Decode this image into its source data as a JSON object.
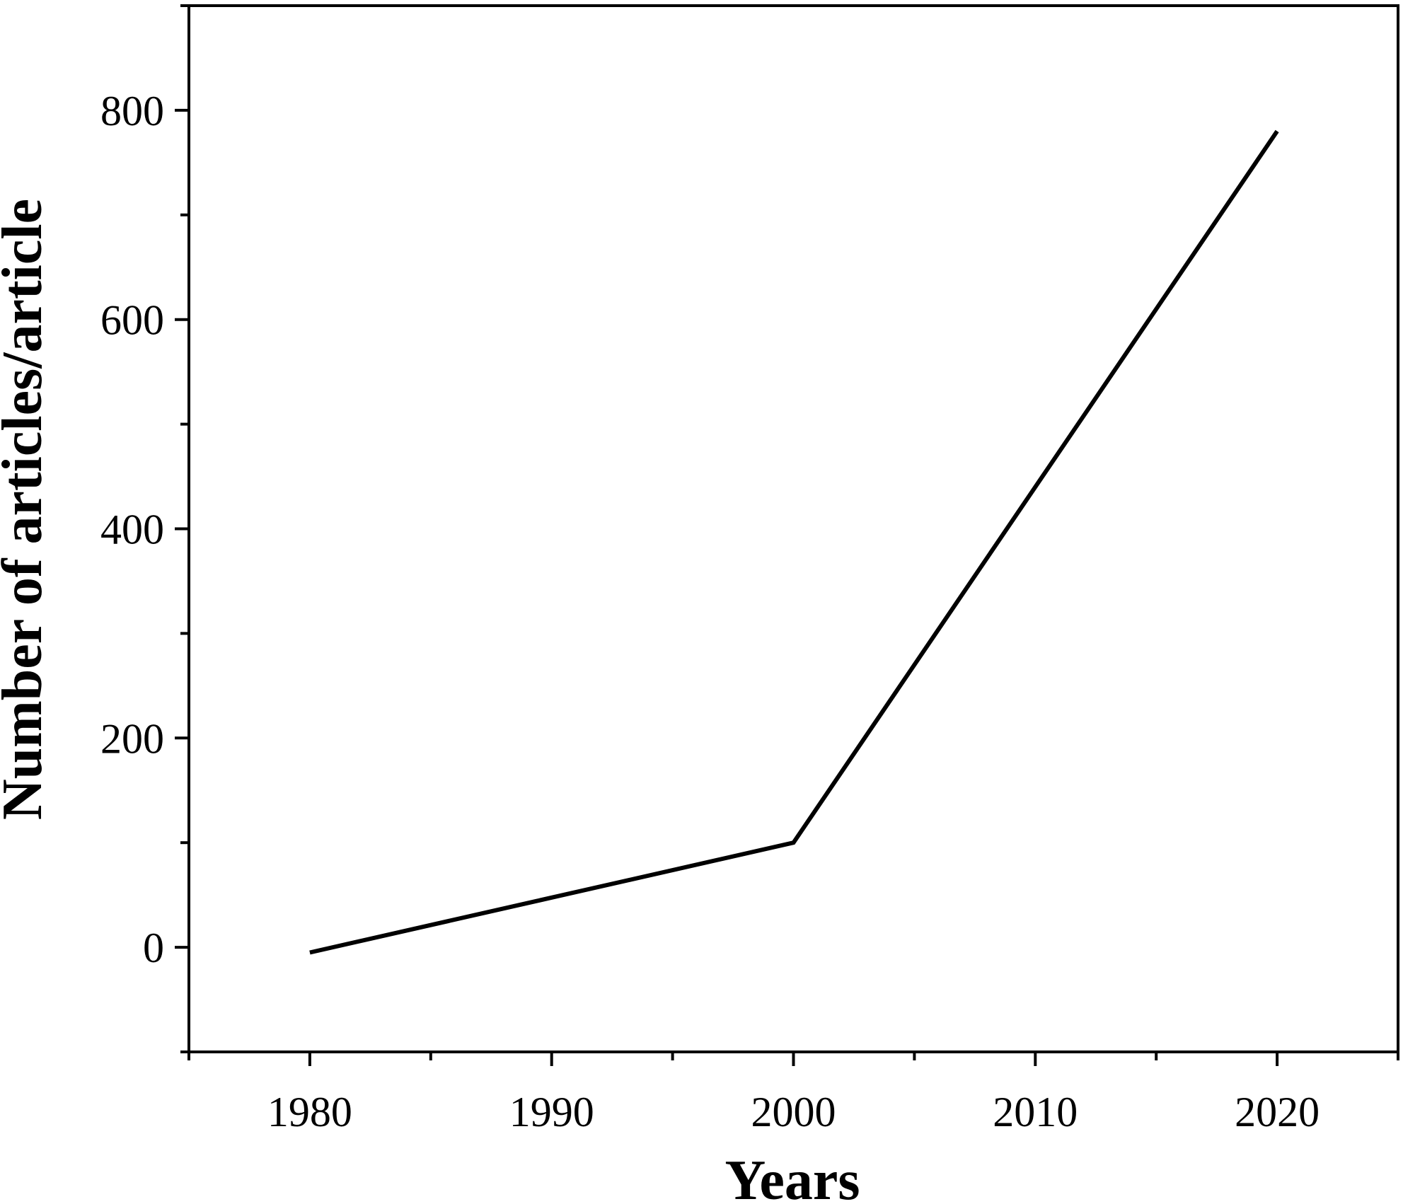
{
  "chart_data": {
    "type": "line",
    "title": "",
    "xlabel": "Years",
    "ylabel": "Number of articles/article",
    "xlim": [
      1975,
      2025
    ],
    "ylim": [
      -100,
      900
    ],
    "x_ticks": [
      1980,
      1990,
      2000,
      2010,
      2020
    ],
    "x_minor_ticks": [
      1975,
      1985,
      1995,
      2005,
      2015,
      2025
    ],
    "y_ticks": [
      0,
      200,
      400,
      600,
      800
    ],
    "y_minor_ticks": [
      -100,
      100,
      300,
      500,
      700,
      900
    ],
    "grid": false,
    "legend": "none",
    "series": [
      {
        "x": [
          1980,
          2000,
          2020
        ],
        "y": [
          -5,
          100,
          780
        ],
        "color": "#000000"
      }
    ]
  }
}
